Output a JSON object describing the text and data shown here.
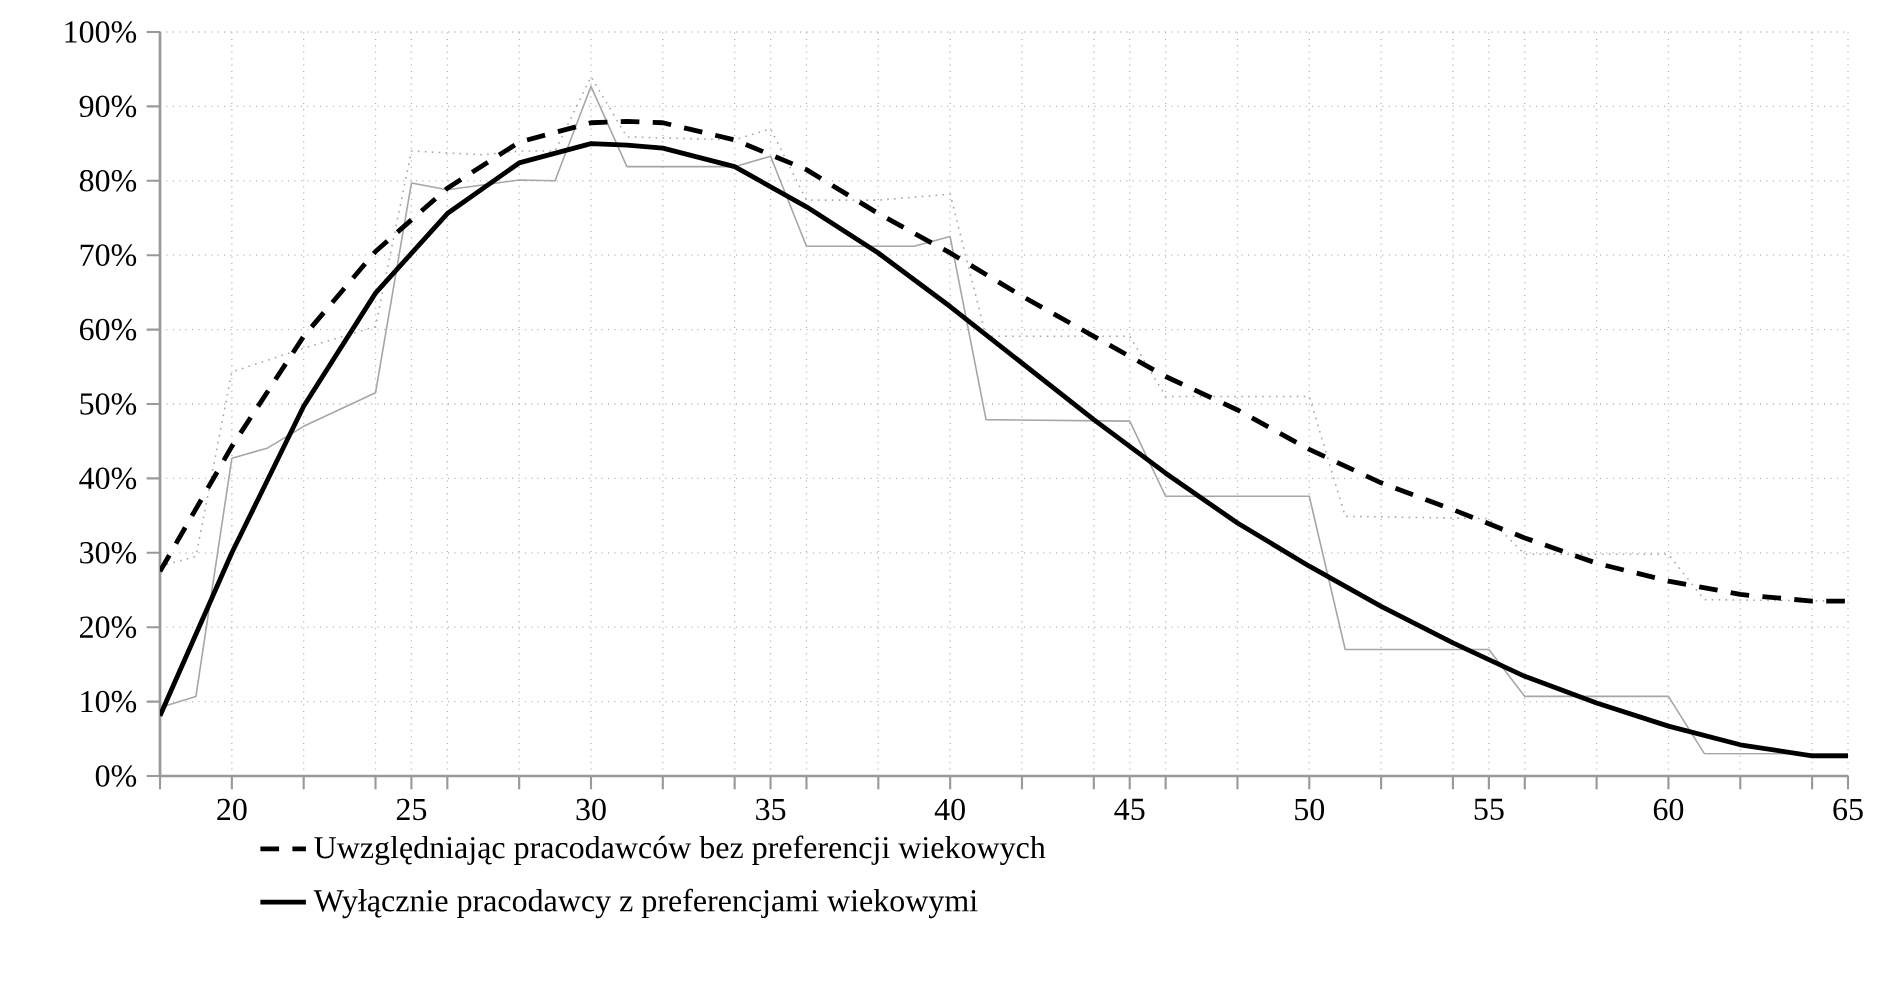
{
  "chart_data": {
    "type": "line",
    "xlim": [
      18,
      65
    ],
    "xticks": [
      {
        "value": 18,
        "label": null
      },
      20,
      {
        "value": 22,
        "label": null
      },
      {
        "value": 24,
        "label": null
      },
      25,
      {
        "value": 26,
        "label": null
      },
      {
        "value": 28,
        "label": null
      },
      30,
      {
        "value": 32,
        "label": null
      },
      {
        "value": 34,
        "label": null
      },
      35,
      {
        "value": 36,
        "label": null
      },
      {
        "value": 38,
        "label": null
      },
      40,
      {
        "value": 42,
        "label": null
      },
      {
        "value": 44,
        "label": null
      },
      45,
      {
        "value": 46,
        "label": null
      },
      {
        "value": 48,
        "label": null
      },
      50,
      {
        "value": 52,
        "label": null
      },
      {
        "value": 54,
        "label": null
      },
      55,
      {
        "value": 56,
        "label": null
      },
      {
        "value": 58,
        "label": null
      },
      60,
      {
        "value": 62,
        "label": null
      },
      {
        "value": 64,
        "label": null
      },
      65
    ],
    "ylim": [
      0,
      100
    ],
    "yticks": [
      {
        "value": 0,
        "label": "0%"
      },
      {
        "value": 10,
        "label": "10%"
      },
      {
        "value": 20,
        "label": "20%"
      },
      {
        "value": 30,
        "label": "30%"
      },
      {
        "value": 40,
        "label": "40%"
      },
      {
        "value": 50,
        "label": "50%"
      },
      {
        "value": 60,
        "label": "60%"
      },
      {
        "value": 70,
        "label": "70%"
      },
      {
        "value": 80,
        "label": "80%"
      },
      {
        "value": 90,
        "label": "90%"
      },
      {
        "value": 100,
        "label": "100%"
      }
    ],
    "grid": true,
    "legend": "bottom",
    "series": [
      {
        "color": "#a6a6a6",
        "line_style": "dotted",
        "x": [
          18,
          19,
          20,
          22,
          24,
          25,
          27,
          28,
          29,
          30,
          31,
          34,
          35,
          36,
          38,
          40,
          41,
          45,
          46,
          50,
          51,
          55,
          56,
          60,
          61,
          65
        ],
        "values": [
          28.2,
          29.5,
          54.3,
          57.5,
          60.4,
          84,
          83.5,
          84,
          84,
          94,
          85.9,
          85.5,
          87,
          77.4,
          77.4,
          78.2,
          59.1,
          59.1,
          51,
          51,
          34.9,
          34.6,
          29.8,
          29.8,
          23.7,
          23.5
        ]
      },
      {
        "color": "#a6a6a6",
        "line_style": "solid",
        "x": [
          18,
          19,
          20,
          21,
          22,
          24,
          25,
          26,
          28,
          29,
          30,
          31,
          34,
          35,
          36,
          39,
          40,
          41,
          45,
          46,
          50,
          51,
          55,
          56,
          60,
          61,
          65
        ],
        "values": [
          9.2,
          10.7,
          42.7,
          44.1,
          47,
          51.5,
          79.7,
          78.8,
          80.1,
          80,
          92.7,
          81.9,
          81.9,
          83.3,
          71.2,
          71.2,
          72.5,
          47.9,
          47.7,
          37.6,
          37.6,
          17,
          17,
          10.7,
          10.7,
          3,
          3
        ]
      },
      {
        "name": "Uwzględniając pracodawców bez preferencji wiekowych",
        "color": "#000000",
        "line_style": "dashed",
        "x": [
          18,
          20,
          22,
          24,
          26,
          28,
          30,
          31,
          32,
          34,
          36,
          38,
          40,
          42,
          44,
          46,
          48,
          50,
          52,
          54,
          56,
          58,
          60,
          62,
          64,
          65
        ],
        "values": [
          27.5,
          44.3,
          59.1,
          70.5,
          79,
          85.2,
          87.8,
          88,
          87.8,
          85.5,
          81.5,
          75.6,
          70.3,
          64.5,
          59.1,
          53.7,
          49.2,
          43.9,
          39.4,
          35.8,
          32,
          28.6,
          26.2,
          24.4,
          23.5,
          23.5
        ]
      },
      {
        "name": "Wyłącznie pracodawcy z preferencjami wiekowymi",
        "color": "#000000",
        "line_style": "solid",
        "x": [
          18,
          20,
          22,
          24,
          26,
          28,
          30,
          31,
          32,
          34,
          36,
          38,
          40,
          42,
          44,
          46,
          48,
          50,
          52,
          54,
          56,
          58,
          60,
          62,
          64,
          65
        ],
        "values": [
          8.1,
          30,
          49.7,
          64.9,
          75.6,
          82.4,
          85,
          84.8,
          84.4,
          81.9,
          76.5,
          70.3,
          63.1,
          55.5,
          47.9,
          40.7,
          34,
          28.2,
          22.8,
          17.9,
          13.4,
          9.8,
          6.7,
          4.2,
          2.7,
          2.7
        ]
      }
    ]
  }
}
